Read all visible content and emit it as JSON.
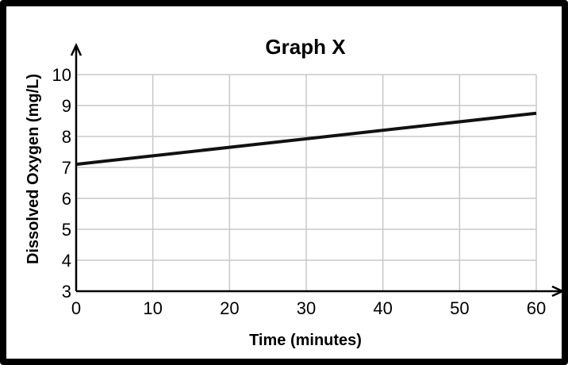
{
  "chart_data": {
    "type": "line",
    "title": "Graph X",
    "xlabel": "Time (minutes)",
    "ylabel": "Dissolved Oxygen (mg/L)",
    "xlim": [
      0,
      60
    ],
    "ylim": [
      3,
      10
    ],
    "x_ticks": [
      "0",
      "10",
      "20",
      "30",
      "40",
      "50",
      "60"
    ],
    "y_ticks": [
      "3",
      "4",
      "5",
      "6",
      "7",
      "8",
      "9",
      "10"
    ],
    "grid": true,
    "series": [
      {
        "x": [
          0,
          60
        ],
        "y": [
          7.1,
          8.75
        ]
      }
    ],
    "colors": {
      "line": "#111111",
      "grid": "#c8c8c8",
      "axis": "#000000"
    }
  }
}
